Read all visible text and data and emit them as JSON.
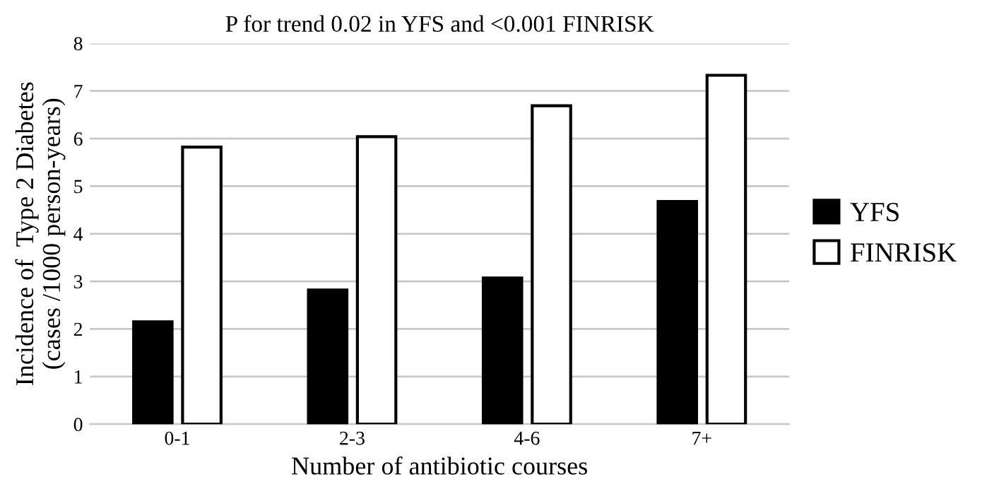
{
  "chart_data": {
    "type": "bar",
    "title": "P for trend 0.02 in YFS and <0.001 FINRISK",
    "xlabel": "Number of antibiotic courses",
    "ylabel": "Incidence of  Type 2 Diabetes\n(cases /1000 person-years)",
    "categories": [
      "0-1",
      "2-3",
      "4-6",
      "7+"
    ],
    "series": [
      {
        "name": "YFS",
        "color": "#000000",
        "values": [
          2.15,
          2.82,
          3.07,
          4.68
        ]
      },
      {
        "name": "FINRISK",
        "color": "#ffffff",
        "values": [
          5.82,
          6.04,
          6.69,
          7.33
        ]
      }
    ],
    "ylim": [
      0,
      8
    ],
    "yticks": [
      0,
      1,
      2,
      3,
      4,
      5,
      6,
      7,
      8
    ],
    "grid": "y",
    "legend": "right"
  }
}
